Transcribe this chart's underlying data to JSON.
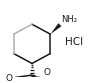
{
  "bg_color": "#ffffff",
  "line_color": "#1a1a1a",
  "gray_color": "#b0b0b0",
  "hcl_text": "HCl",
  "nh2_text": "NH₂",
  "o_carbonyl_text": "O",
  "o_methoxy_text": "O",
  "figsize": [
    0.94,
    0.83
  ],
  "dpi": 100
}
